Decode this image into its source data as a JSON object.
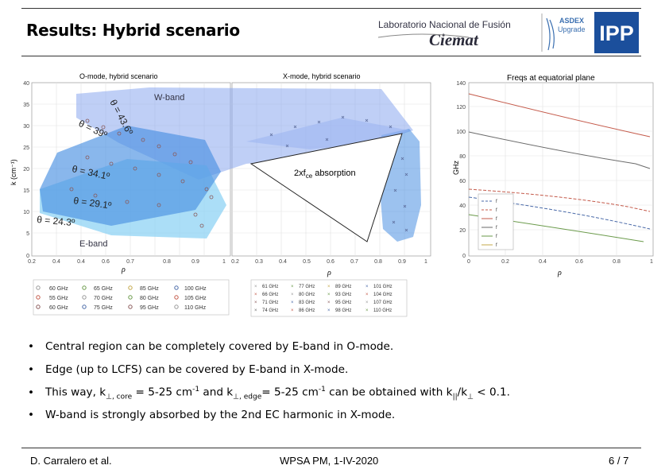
{
  "header": {
    "title": "Results: Hybrid scenario",
    "lab_line1": "Laboratorio Nacional de Fusión",
    "lab_line2": "Ciemat",
    "asdex_line1": "ASDEX",
    "asdex_line2": "Upgrade",
    "ipp": "IPP"
  },
  "figure": {
    "panel1_title": "O-mode, hybrid scenario",
    "panel2_title": "X-mode, hybrid scenario",
    "panel3_title": "Freqs at equatorial plane",
    "ylabel_left": "k  (cm⁻¹)",
    "ylabel_right": "GHz",
    "xlabel_rho": "ρ",
    "wband": "W-band",
    "eband": "E-band",
    "absorption": "2xf",
    "absorption_sub": "ce",
    "absorption_tail": " absorption",
    "angles": [
      "θ = 43.6º",
      "θ = 39º",
      "θ = 34.1º",
      "θ = 29.1º",
      "θ = 24.3º"
    ],
    "y_ticks_left": [
      "40",
      "35",
      "30",
      "25",
      "20",
      "15",
      "10",
      "5",
      "0"
    ],
    "x_ticks_p1": [
      "0.2",
      "0.4",
      "0.4",
      "0.6",
      "0.7",
      "0.8",
      "0.9",
      "1"
    ],
    "x_ticks_p2": [
      "0.2",
      "0.3",
      "0.4",
      "0.5",
      "0.6",
      "0.7",
      "0.8",
      "0.9",
      "1"
    ],
    "y_ticks_right": [
      "140",
      "120",
      "100",
      "80",
      "60",
      "40",
      "20",
      "0"
    ],
    "x_ticks_p3": [
      "0",
      "0.2",
      "0.4",
      "0.6",
      "0.8",
      "1"
    ],
    "legend_p3": [
      "f",
      "f",
      "f",
      "f",
      "f",
      "f"
    ],
    "legend_o": [
      [
        "60 GHz",
        "65 GHz",
        "85 GHz",
        "100 GHz"
      ],
      [
        "55 GHz",
        "70 GHz",
        "80 GHz",
        "105 GHz"
      ],
      [
        "60 GHz",
        "75 GHz",
        "95 GHz",
        "110 GHz"
      ]
    ],
    "legend_x": [
      [
        "61 GHz",
        "77 GHz",
        "89 GHz",
        "101 GHz"
      ],
      [
        "66 GHz",
        "80 GHz",
        "93 GHz",
        "104 GHz"
      ],
      [
        "71 GHz",
        "83 GHz",
        "95 GHz",
        "107 GHz"
      ],
      [
        "74 GHz",
        "86 GHz",
        "98 GHz",
        "110 GHz"
      ]
    ]
  },
  "bullets": {
    "b1": "Central region can be completely covered by E-band in O-mode.",
    "b2": "Edge (up to LCFS) can be covered by E-band in X-mode.",
    "b3_a": "This way, k",
    "b3_b": "⊥, core",
    "b3_c": " = 5-25 cm",
    "b3_d": "-1",
    "b3_e": " and k",
    "b3_f": "⊥, edge",
    "b3_g": "= 5-25 cm",
    "b3_h": "-1",
    "b3_i": " can be obtained with k",
    "b3_j": "||",
    "b3_k": "/k",
    "b3_l": "⊥",
    "b3_m": " < 0.1.",
    "b4": "W-band is strongly absorbed by the 2nd EC harmonic in X-mode.",
    "bullet_char": "•"
  },
  "footer": {
    "author": "D. Carralero et al.",
    "event": "WPSA PM, 1-IV-2020",
    "page": "6 / 7"
  },
  "colors": {
    "band_blue": "#4a90e2",
    "light_blue": "#8fd3f4",
    "wband": "#8aa8ee",
    "ipp_blue": "#1b4f9c"
  }
}
